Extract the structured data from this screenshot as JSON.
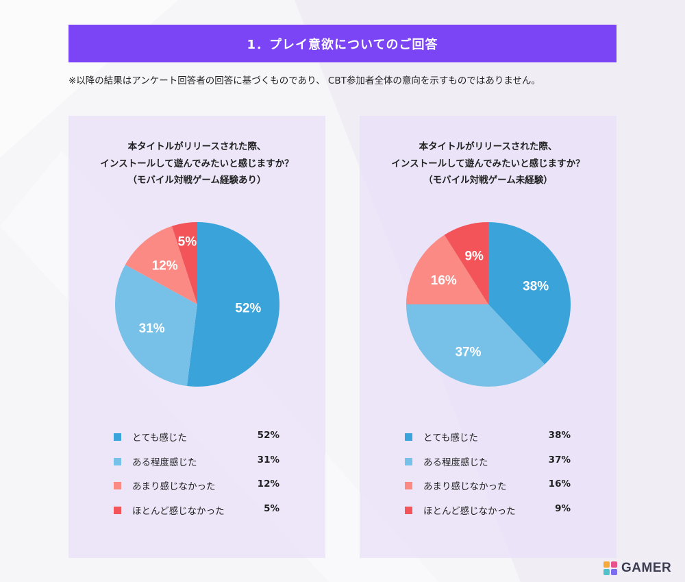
{
  "header": {
    "title": "1．プレイ意欲についてのご回答"
  },
  "note": "※以降の結果はアンケート回答者の回答に基づくものであり、 CBT参加者全体の意向を示すものではありません。",
  "colors": {
    "very": "#3aa3da",
    "somewhat": "#77c0e7",
    "notmuch": "#fb8a84",
    "hardly": "#f2545a",
    "header": "#7b45f5"
  },
  "chart_data": [
    {
      "type": "pie",
      "title_lines": [
        "本タイトルがリリースされた際、",
        "インストールして遊んでみたいと感じますか？",
        "（モバイル対戦ゲーム経験あり）"
      ],
      "categories": [
        "とても感じた",
        "ある程度感じた",
        "あまり感じなかった",
        "ほとんど感じなかった"
      ],
      "values": [
        52,
        31,
        12,
        5
      ],
      "labels": [
        "52%",
        "31%",
        "12%",
        "5%"
      ],
      "colors": [
        "#3aa3da",
        "#77c0e7",
        "#fb8a84",
        "#f2545a"
      ],
      "legend_placement": "bottom"
    },
    {
      "type": "pie",
      "title_lines": [
        "本タイトルがリリースされた際、",
        "インストールして遊んでみたいと感じますか？",
        "（モバイル対戦ゲーム未経験）"
      ],
      "categories": [
        "とても感じた",
        "ある程度感じた",
        "あまり感じなかった",
        "ほとんど感じなかった"
      ],
      "values": [
        38,
        37,
        16,
        9
      ],
      "labels": [
        "38%",
        "37%",
        "16%",
        "9%"
      ],
      "colors": [
        "#3aa3da",
        "#77c0e7",
        "#fb8a84",
        "#f2545a"
      ],
      "legend_placement": "bottom"
    }
  ],
  "logo": {
    "text": "GAMER"
  }
}
